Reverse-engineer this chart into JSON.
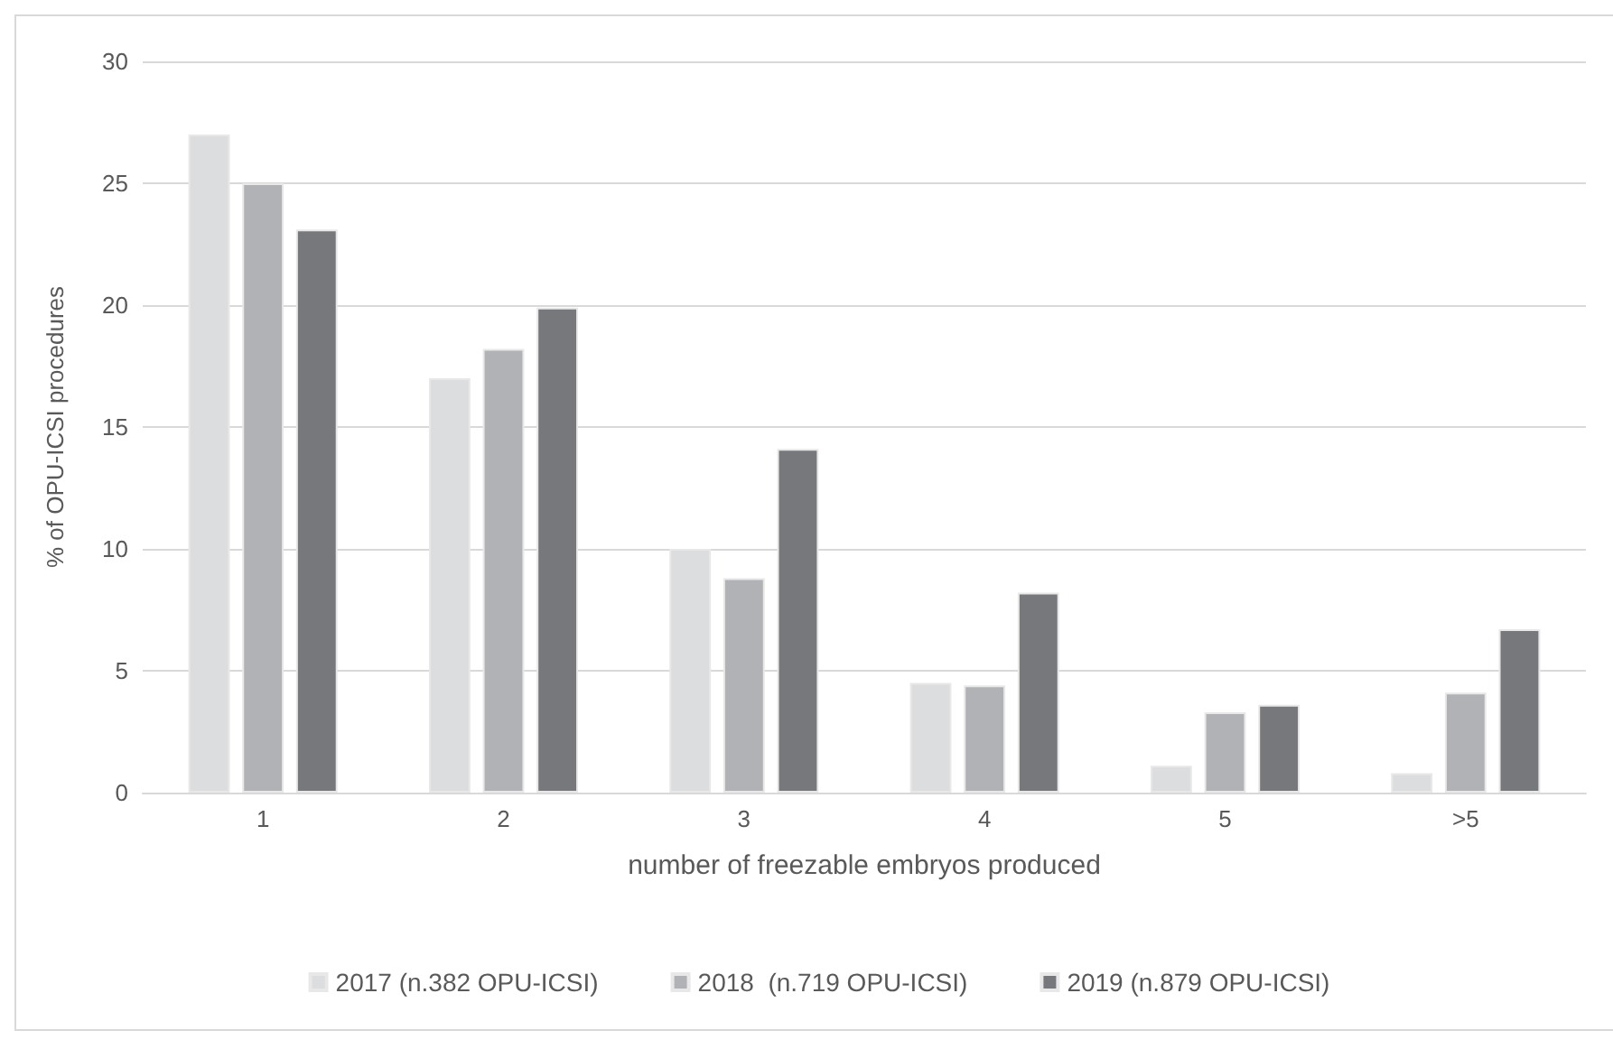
{
  "chart_data": {
    "type": "bar",
    "xlabel": "number of freezable embryos produced",
    "ylabel": "% of OPU-ICSI procedures",
    "categories": [
      "1",
      "2",
      "3",
      "4",
      "5",
      ">5"
    ],
    "series": [
      {
        "name": "2017 (n.382 OPU-ICSI)",
        "color": "#dcdddf",
        "values": [
          27,
          17,
          10,
          4.5,
          1.1,
          0.8
        ]
      },
      {
        "name": "2018  (n.719 OPU-ICSI)",
        "color": "#b1b2b5",
        "values": [
          25,
          18.2,
          8.8,
          4.4,
          3.3,
          4.1
        ]
      },
      {
        "name": "2019 (n.879 OPU-ICSI)",
        "color": "#77787c",
        "values": [
          23.1,
          19.9,
          14.1,
          8.2,
          3.6,
          6.7
        ]
      }
    ],
    "ylim": [
      0,
      30
    ],
    "yticks": [
      0,
      5,
      10,
      15,
      20,
      25,
      30
    ],
    "grid": "y",
    "legend": "bottom"
  }
}
